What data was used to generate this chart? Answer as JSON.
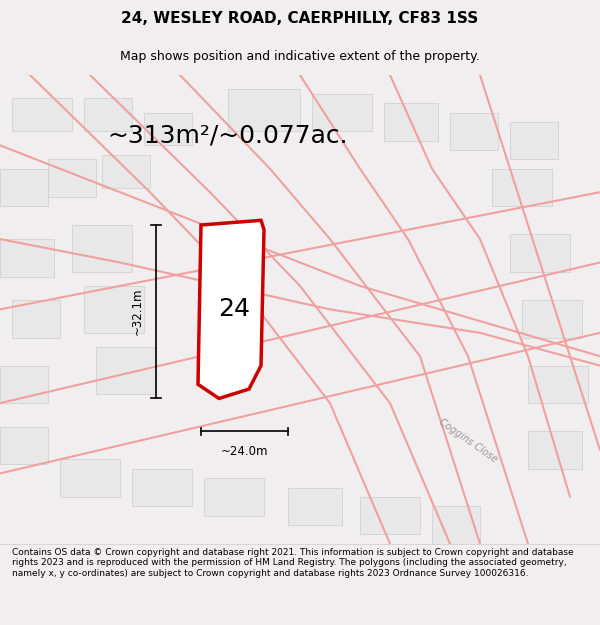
{
  "title": "24, WESLEY ROAD, CAERPHILLY, CF83 1SS",
  "subtitle": "Map shows position and indicative extent of the property.",
  "area_text": "~313m²/~0.077ac.",
  "label_number": "24",
  "dim_width": "~24.0m",
  "dim_height": "~32.1m",
  "road_label": "Coggins Close",
  "footer": "Contains OS data © Crown copyright and database right 2021. This information is subject to Crown copyright and database rights 2023 and is reproduced with the permission of HM Land Registry. The polygons (including the associated geometry, namely x, y co-ordinates) are subject to Crown copyright and database rights 2023 Ordnance Survey 100026316.",
  "bg_color": "#f0eeee",
  "map_bg": "#f5f3f3",
  "plot_bg": "#ffffff",
  "road_color": "#f0a0a0",
  "building_color": "#e8e8e8",
  "highlight_color": "#cc0000",
  "title_fontsize": 11,
  "subtitle_fontsize": 9,
  "area_fontsize": 18,
  "label_fontsize": 18,
  "footer_fontsize": 6.5
}
